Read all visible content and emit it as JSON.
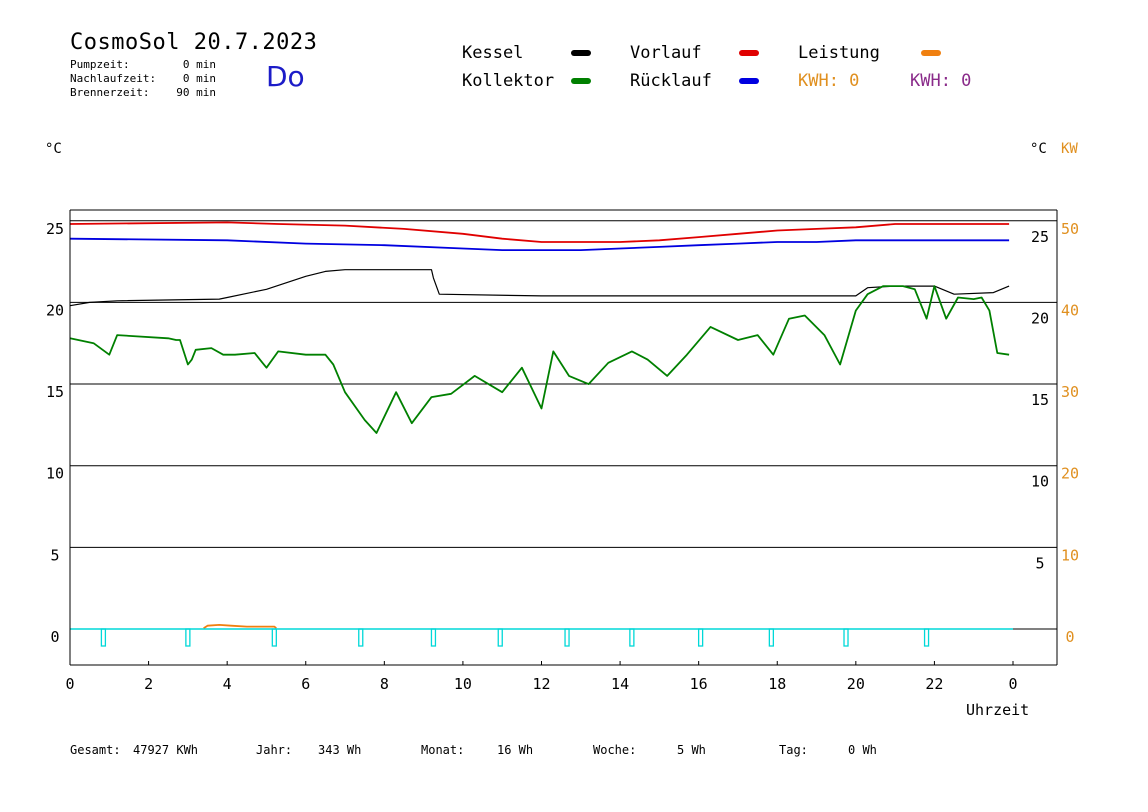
{
  "header": {
    "title": "CosmoSol 20.7.2023",
    "weekday": "Do",
    "stats": [
      {
        "label": "Pumpzeit:",
        "value": "0 min"
      },
      {
        "label": "Nachlaufzeit:",
        "value": "0 min"
      },
      {
        "label": "Brennerzeit:",
        "value": "90 min"
      }
    ]
  },
  "legend": {
    "items": [
      {
        "label": "Kessel",
        "color": "#000000"
      },
      {
        "label": "Vorlauf",
        "color": "#e00000"
      },
      {
        "label": "Leistung",
        "color": "#f08010"
      },
      {
        "label": "Kollektor",
        "color": "#008000"
      },
      {
        "label": "Rücklauf",
        "color": "#0000e0"
      }
    ],
    "kwh_orange": "KWH: 0",
    "kwh_purple": "KWH: 0",
    "colors": {
      "orange": "#e09020",
      "purple": "#8a2b8a"
    }
  },
  "units": {
    "left": "°C",
    "right_temp": "°C",
    "right_power": "KW"
  },
  "footer": {
    "gesamt_label": "Gesamt:",
    "gesamt_value": "47927 KWh",
    "jahr_label": "Jahr:",
    "jahr_value": "343 Wh",
    "monat_label": "Monat:",
    "monat_value": "16 Wh",
    "woche_label": "Woche:",
    "woche_value": "5 Wh",
    "tag_label": "Tag:",
    "tag_value": "0 Wh"
  },
  "chart_data": {
    "type": "line",
    "xlabel": "Uhrzeit",
    "xlim": [
      0,
      24
    ],
    "x_tick_labels": [
      "0",
      "2",
      "4",
      "6",
      "8",
      "10",
      "12",
      "14",
      "16",
      "18",
      "20",
      "22",
      "0"
    ],
    "ylim": [
      -2,
      26
    ],
    "y_left_ticks": [
      "0",
      "5",
      "10",
      "15",
      "20",
      "25"
    ],
    "y_right_temp_ticks": [
      "5",
      "10",
      "15",
      "20",
      "25"
    ],
    "y_right_power_ticks": [
      "0",
      "10",
      "20",
      "30",
      "40",
      "50"
    ],
    "grid": true,
    "series": [
      {
        "name": "Vorlauf",
        "color": "#e00000",
        "x": [
          0,
          4,
          5.3,
          7,
          8.5,
          10,
          11,
          12,
          13,
          14,
          15,
          16,
          17,
          18,
          19,
          20,
          21,
          22,
          23,
          23.9
        ],
        "y": [
          24.8,
          24.9,
          24.8,
          24.7,
          24.5,
          24.2,
          23.9,
          23.7,
          23.7,
          23.7,
          23.8,
          24.0,
          24.2,
          24.4,
          24.5,
          24.6,
          24.8,
          24.8,
          24.8,
          24.8
        ]
      },
      {
        "name": "Rücklauf",
        "color": "#0000e0",
        "x": [
          0,
          4,
          6,
          8,
          10,
          11,
          12,
          13,
          14,
          15,
          16,
          17,
          18,
          19,
          20,
          21,
          22,
          23,
          23.9
        ],
        "y": [
          23.9,
          23.8,
          23.6,
          23.5,
          23.3,
          23.2,
          23.2,
          23.2,
          23.3,
          23.4,
          23.5,
          23.6,
          23.7,
          23.7,
          23.8,
          23.8,
          23.8,
          23.8,
          23.8
        ]
      },
      {
        "name": "Kessel",
        "color": "#000000",
        "x": [
          0,
          0.5,
          1.2,
          3.8,
          4.0,
          5.0,
          6.0,
          6.5,
          7.0,
          8.0,
          9.2,
          9.25,
          9.4,
          12.0,
          15.0,
          18.0,
          20.0,
          20.3,
          21.0,
          22.0,
          22.5,
          23.5,
          23.9
        ],
        "y": [
          19.8,
          20.0,
          20.1,
          20.2,
          20.3,
          20.8,
          21.6,
          21.9,
          22.0,
          22.0,
          22.0,
          21.5,
          20.5,
          20.4,
          20.4,
          20.4,
          20.4,
          20.9,
          21.0,
          21.0,
          20.5,
          20.6,
          21.0
        ]
      },
      {
        "name": "Kollektor",
        "color": "#008000",
        "x": [
          0,
          0.6,
          1.0,
          1.2,
          2.5,
          2.7,
          2.8,
          3.0,
          3.1,
          3.2,
          3.6,
          3.9,
          4.2,
          4.7,
          4.9,
          5.0,
          5.3,
          6.0,
          6.5,
          6.7,
          7.0,
          7.5,
          7.8,
          8.3,
          8.7,
          9.2,
          9.7,
          10.3,
          11.0,
          11.5,
          12.0,
          12.3,
          12.7,
          13.2,
          13.7,
          14.3,
          14.7,
          15.2,
          15.7,
          16.3,
          17.0,
          17.5,
          17.9,
          18.3,
          18.7,
          19.2,
          19.6,
          20.0,
          20.3,
          20.7,
          21.2,
          21.5,
          21.8,
          22.0,
          22.3,
          22.6,
          23.0,
          23.2,
          23.4,
          23.6,
          23.9
        ],
        "y": [
          17.8,
          17.5,
          16.8,
          18.0,
          17.8,
          17.7,
          17.7,
          16.2,
          16.5,
          17.1,
          17.2,
          16.8,
          16.8,
          16.9,
          16.3,
          16.0,
          17.0,
          16.8,
          16.8,
          16.2,
          14.5,
          12.8,
          12.0,
          14.5,
          12.6,
          14.2,
          14.4,
          15.5,
          14.5,
          16.0,
          13.5,
          17.0,
          15.5,
          15.0,
          16.3,
          17.0,
          16.5,
          15.5,
          16.8,
          18.5,
          17.7,
          18.0,
          16.8,
          19.0,
          19.2,
          18.0,
          16.2,
          19.5,
          20.5,
          21.0,
          21.0,
          20.8,
          19.0,
          21.0,
          19.0,
          20.3,
          20.2,
          20.3,
          19.5,
          16.9,
          16.8
        ]
      },
      {
        "name": "Leistung",
        "color": "#f08010",
        "x": [
          3.4,
          3.5,
          3.8,
          4.1,
          4.5,
          5.2,
          5.25
        ],
        "y": [
          0.05,
          0.2,
          0.25,
          0.2,
          0.15,
          0.15,
          0.05
        ]
      }
    ]
  }
}
